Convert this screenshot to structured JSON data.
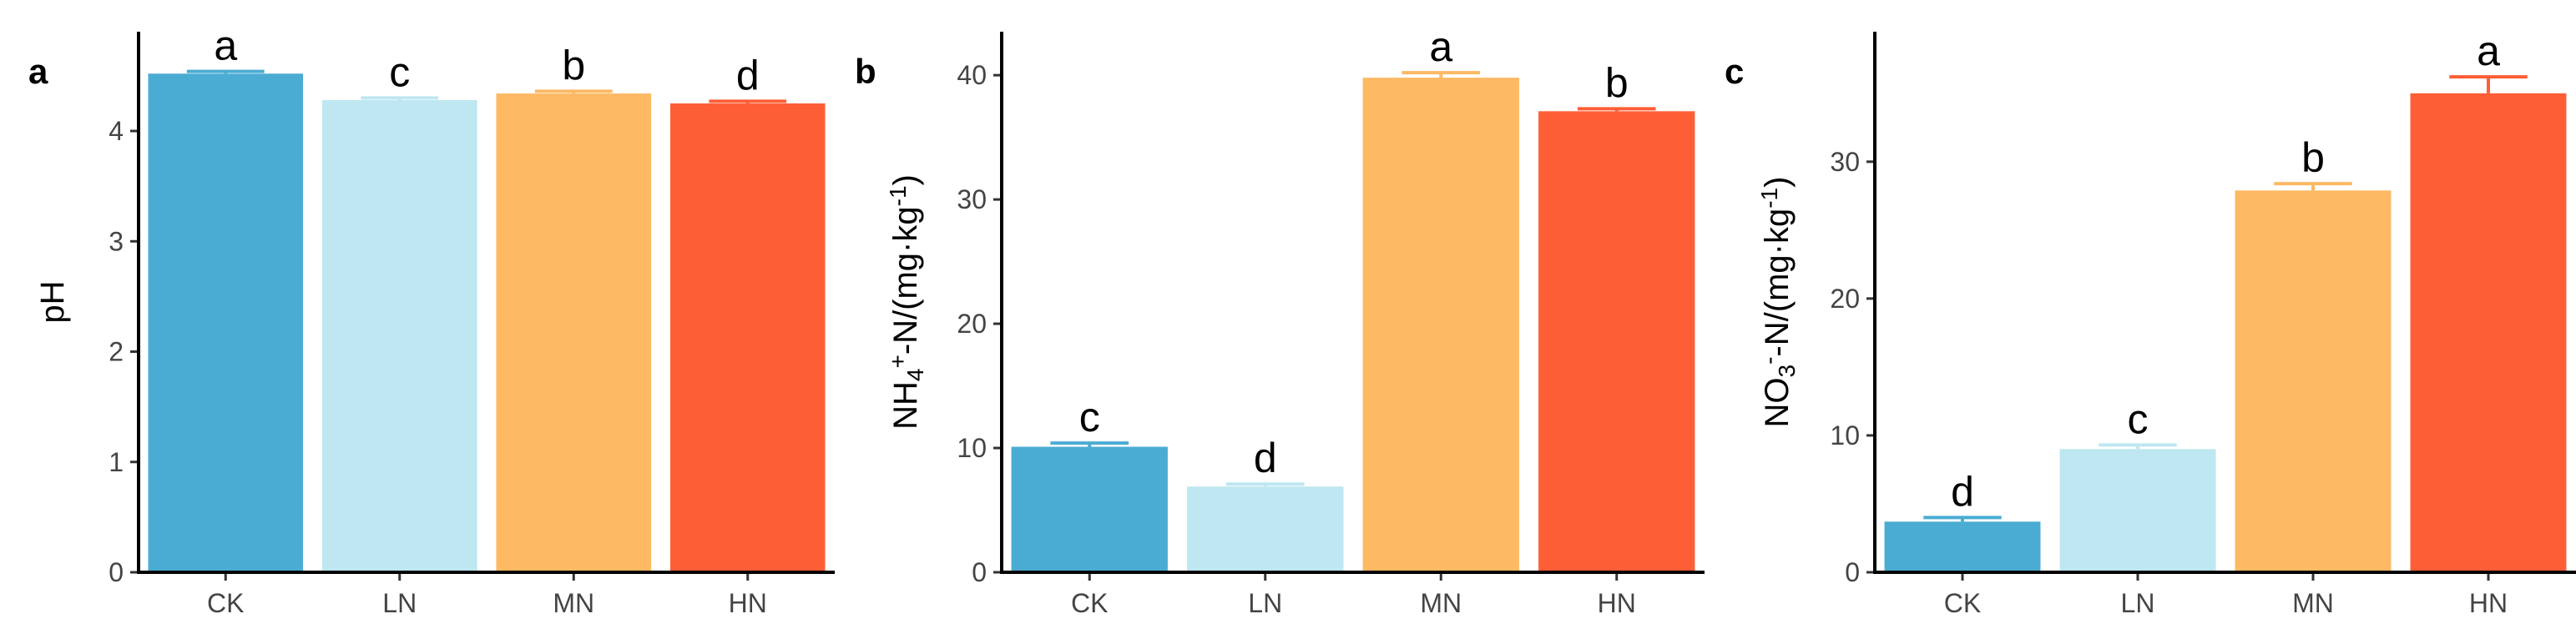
{
  "chart_data": [
    {
      "type": "bar",
      "panel_label": "a",
      "categories": [
        "CK",
        "LN",
        "MN",
        "HN"
      ],
      "values": [
        4.52,
        4.28,
        4.34,
        4.25
      ],
      "errors": [
        0.02,
        0.02,
        0.02,
        0.02
      ],
      "significance": [
        "a",
        "c",
        "b",
        "d"
      ],
      "ylabel": "pH",
      "ylabel_parts": [],
      "ylim": [
        0,
        4.9
      ],
      "yticks": [
        0,
        1,
        2,
        3,
        4
      ],
      "grid": false,
      "legend": "none"
    },
    {
      "type": "bar",
      "panel_label": "b",
      "categories": [
        "CK",
        "LN",
        "MN",
        "HN"
      ],
      "values": [
        10.1,
        6.9,
        39.8,
        37.1
      ],
      "errors": [
        0.3,
        0.2,
        0.4,
        0.2
      ],
      "significance": [
        "c",
        "d",
        "a",
        "b"
      ],
      "ylabel": "",
      "ylabel_parts": [
        {
          "t": "NH",
          "s": ""
        },
        {
          "t": "4",
          "s": "sub"
        },
        {
          "t": "+",
          "s": "sup"
        },
        {
          "t": "-N/(mg·kg",
          "s": ""
        },
        {
          "t": "-1",
          "s": "sup"
        },
        {
          "t": ")",
          "s": ""
        }
      ],
      "ylim": [
        0,
        43.5
      ],
      "yticks": [
        0,
        10,
        20,
        30,
        40
      ],
      "grid": false,
      "legend": "none"
    },
    {
      "type": "bar",
      "panel_label": "c",
      "categories": [
        "CK",
        "LN",
        "MN",
        "HN"
      ],
      "values": [
        3.7,
        9.0,
        27.9,
        35.0
      ],
      "errors": [
        0.3,
        0.3,
        0.5,
        1.2
      ],
      "significance": [
        "d",
        "c",
        "b",
        "a"
      ],
      "ylabel": "",
      "ylabel_parts": [
        {
          "t": "NO",
          "s": ""
        },
        {
          "t": "3",
          "s": "sub"
        },
        {
          "t": "-",
          "s": "sup"
        },
        {
          "t": "-N/(mg·kg",
          "s": ""
        },
        {
          "t": "-1",
          "s": "sup"
        },
        {
          "t": ")",
          "s": ""
        }
      ],
      "ylim": [
        0,
        39.5
      ],
      "yticks": [
        0,
        10,
        20,
        30
      ],
      "grid": false,
      "legend": "none"
    }
  ],
  "colors": [
    "#4BACD3",
    "#BEE7F1",
    "#FDB964",
    "#FE5E36"
  ],
  "axis_color": "#000000",
  "tick_label_color": "#444444"
}
